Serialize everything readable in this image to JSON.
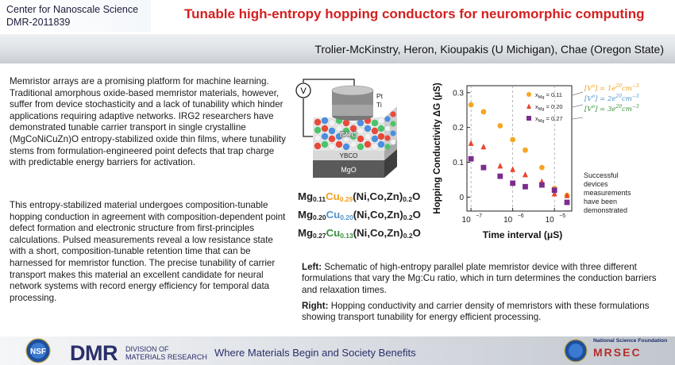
{
  "header": {
    "center_name": "Center for Nanoscale Science",
    "award_number": "DMR-2011839",
    "title": "Tunable high-entropy hopping conductors for neuromorphic computing"
  },
  "authors": "Trolier-McKinstry, Heron, Kioupakis (U Michigan), Chae (Oregon State)",
  "body": {
    "paragraph_1": "Memristor arrays are a promising platform for machine learning. Traditional amorphous oxide-based memristor materials, however, suffer from device stochasticity and a lack of tunability which hinder applications requiring adaptive networks. IRG2 researchers have demonstrated tunable carrier transport in single crystalline (MgCoNiCuZn)O entropy-stabilized oxide thin films, where tunability stems from formulation-engineered point defects that trap charge with predictable energy barriers for activation.",
    "paragraph_2": "This entropy-stabilized material undergoes composition-tunable hopping conduction in agreement with composition-dependent point defect formation and electronic structure from first-principles calculations. Pulsed measurements reveal a low resistance state with a short, composition-tunable retention time that can be harnessed for memristor function. The precise tunability of carrier transport makes this material an excellent candidate for neural network systems with record energy efficiency for temporal data processing."
  },
  "device": {
    "voltmeter_label": "V",
    "top_electrode_1": "Pt",
    "top_electrode_2": "Ti",
    "film_label": "ESO",
    "layer_ybco": "YBCO",
    "layer_mgo": "MgO"
  },
  "formulas": [
    {
      "mg": "Mg",
      "mg_sub": "0.11",
      "cu": "Cu",
      "cu_sub": "0.29",
      "rest": "(Ni,Co,Zn)",
      "rest_sub": "0.2",
      "o": "O"
    },
    {
      "mg": "Mg",
      "mg_sub": "0.20",
      "cu": "Cu",
      "cu_sub": "0.20",
      "rest": "(Ni,Co,Zn)",
      "rest_sub": "0.2",
      "o": "O"
    },
    {
      "mg": "Mg",
      "mg_sub": "0.27",
      "cu": "Cu",
      "cu_sub": "0.13",
      "rest": "(Ni,Co,Zn)",
      "rest_sub": "0.2",
      "o": "O"
    }
  ],
  "chart_data": {
    "type": "scatter",
    "xlabel": "Time interval (μS)",
    "ylabel": "Hopping Conductivity ΔG (μS)",
    "xscale": "log",
    "xlim": [
      8e-08,
      2.6e-05
    ],
    "ylim": [
      -0.04,
      0.32
    ],
    "yticks": [
      0,
      0.1,
      0.2,
      0.3
    ],
    "ytick_labels": [
      "0",
      "0.1",
      "0.2",
      "0.3"
    ],
    "xticks": [
      1e-07,
      1e-06,
      1e-05
    ],
    "xtick_labels": [
      "10",
      "10",
      "10"
    ],
    "xtick_exponents": [
      "−7",
      "−6",
      "−5"
    ],
    "grid": "vertical dashed lines at decades",
    "legend_position": "top-right",
    "series": [
      {
        "name": "x_Mg = 0.11",
        "legend_prefix": "x",
        "legend_sub": "Mg",
        "legend_value": " = 0.11",
        "marker": "circle",
        "color": "#f5a623",
        "x": [
          1e-07,
          2e-07,
          5e-07,
          1e-06,
          2e-06,
          5e-06,
          1e-05,
          2e-05
        ],
        "y": [
          0.265,
          0.245,
          0.205,
          0.165,
          0.135,
          0.085,
          0.025,
          0.005
        ]
      },
      {
        "name": "x_Mg = 0.20",
        "legend_prefix": "x",
        "legend_sub": "Mg",
        "legend_value": " = 0.20",
        "marker": "triangle",
        "color": "#e8452c",
        "x": [
          1e-07,
          2e-07,
          5e-07,
          1e-06,
          2e-06,
          5e-06,
          1e-05,
          2e-05
        ],
        "y": [
          0.155,
          0.145,
          0.09,
          0.08,
          0.065,
          0.045,
          0.01,
          0.005
        ]
      },
      {
        "name": "x_Mg = 0.27",
        "legend_prefix": "x",
        "legend_sub": "Mg",
        "legend_value": " = 0.27",
        "marker": "square",
        "color": "#7b2d8e",
        "x": [
          1e-07,
          2e-07,
          5e-07,
          1e-06,
          2e-06,
          5e-06,
          1e-05,
          2e-05
        ],
        "y": [
          0.11,
          0.085,
          0.06,
          0.04,
          0.03,
          0.035,
          0.02,
          -0.015
        ]
      }
    ],
    "annotations": {
      "carrier_density": [
        {
          "prefix": "[V",
          "sup": "o",
          "mid": "]",
          "value": " = 1e",
          "exp": "20",
          "unit": "cm",
          "unit_exp": "−3",
          "color": "#f0a020"
        },
        {
          "prefix": "[V",
          "sup": "o",
          "mid": "]",
          "value": " = 2e",
          "exp": "20",
          "unit": "cm",
          "unit_exp": "−3",
          "color": "#4f94cd"
        },
        {
          "prefix": "[V",
          "sup": "o",
          "mid": "]",
          "value": " = 3e",
          "exp": "20",
          "unit": "cm",
          "unit_exp": "−3",
          "color": "#3a8f3a"
        }
      ],
      "note_lines": [
        "Successful",
        "devices",
        "measurements",
        "have been",
        "demonstrated"
      ]
    }
  },
  "captions": {
    "left_label": "Left:",
    "left_text": " Schematic of high-entropy parallel plate memristor device with three different formulations that vary the Mg:Cu ratio, which in turn determines the conduction barriers and relaxation times.",
    "right_label": "Right:",
    "right_text": " Hopping conductivity and carrier density of memristors with these formulations showing transport tunability for energy efficient processing."
  },
  "footer": {
    "nsf_logo_text": "NSF",
    "dmr_text": "DMR",
    "dmr_sub_1": "DIVISION OF",
    "dmr_sub_2": "MATERIALS RESEARCH",
    "tagline": "Where Materials Begin and Society Benefits",
    "nsf_foundation": "National Science Foundation",
    "mrsec_text": "MRSEC"
  },
  "colors": {
    "title_red": "#d42020",
    "navy": "#2a2f6a"
  }
}
